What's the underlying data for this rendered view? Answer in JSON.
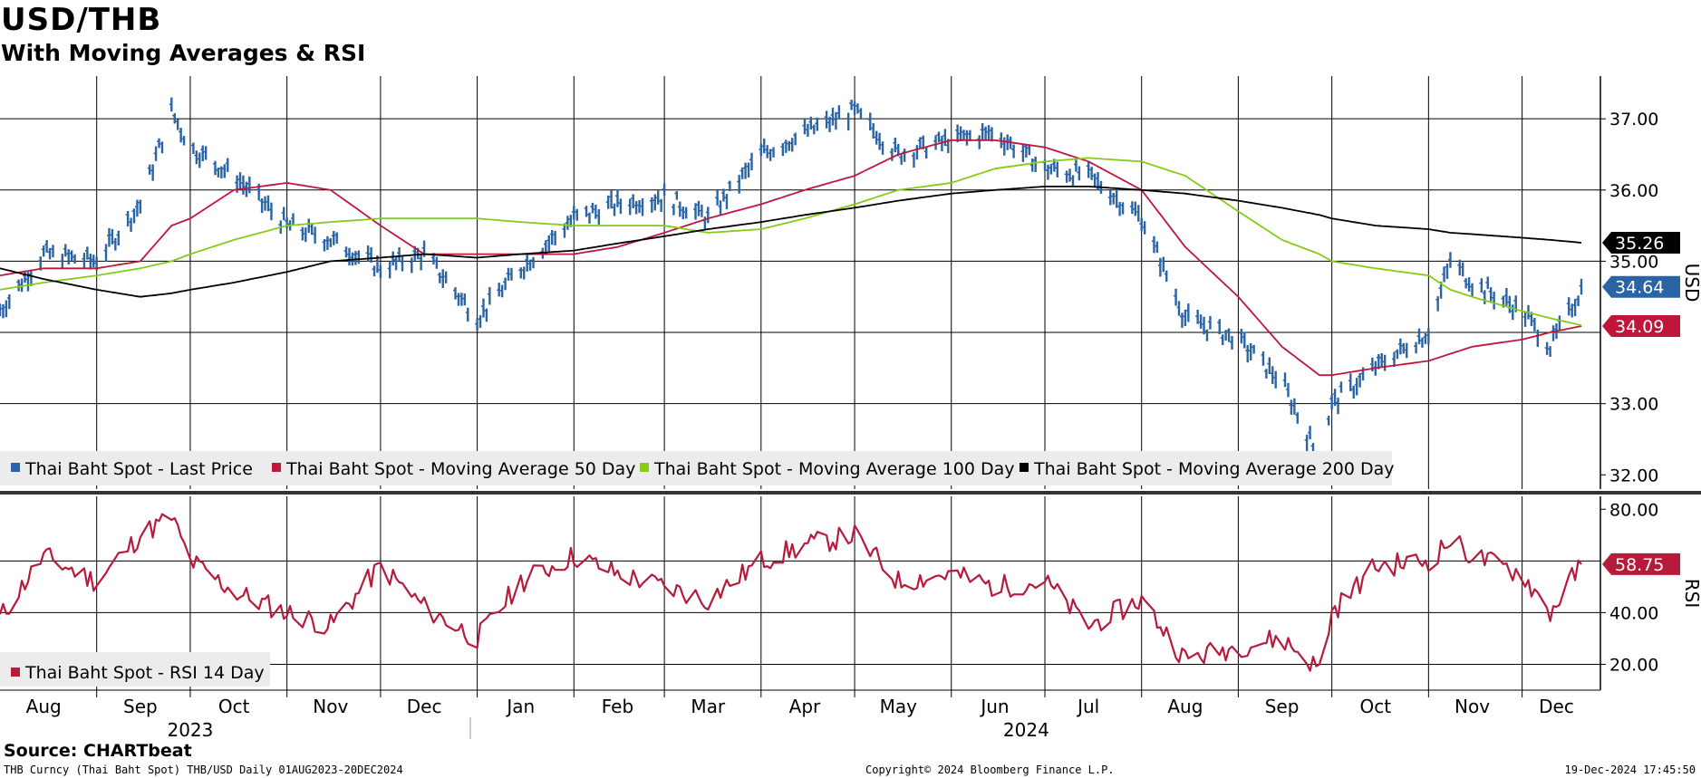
{
  "header": {
    "title": "USD/THB",
    "subtitle": "With Moving Averages & RSI"
  },
  "footer": {
    "source": "Source: CHARTbeat",
    "ticker": "THB Curncy (Thai Baht Spot) THB/USD  Daily 01AUG2023-20DEC2024",
    "copyright": "Copyright© 2024 Bloomberg Finance L.P.",
    "timestamp": "19-Dec-2024 17:45:50"
  },
  "colors": {
    "price": "#2b64a4",
    "ma50": "#c0163c",
    "ma100": "#84cc16",
    "ma200": "#000000",
    "rsi": "#b71b3b",
    "grid": "#000000"
  },
  "chart_data": [
    {
      "type": "line",
      "panel": "price",
      "ylabel": "USD",
      "ylim": [
        31.8,
        37.6
      ],
      "yticks": [
        "37.00",
        "36.00",
        "35.00",
        "33.00",
        "32.00"
      ],
      "ytick_values": [
        37,
        36,
        35,
        33,
        32
      ],
      "x_dates": [
        "2023-08-01",
        "2023-08-15",
        "2023-09-01",
        "2023-09-15",
        "2023-09-25",
        "2023-10-01",
        "2023-10-15",
        "2023-11-01",
        "2023-11-15",
        "2023-12-01",
        "2023-12-15",
        "2024-01-01",
        "2024-01-15",
        "2024-02-01",
        "2024-02-15",
        "2024-03-01",
        "2024-03-15",
        "2024-04-01",
        "2024-04-15",
        "2024-05-01",
        "2024-05-15",
        "2024-06-01",
        "2024-06-15",
        "2024-07-01",
        "2024-07-15",
        "2024-08-01",
        "2024-08-15",
        "2024-09-01",
        "2024-09-15",
        "2024-09-27",
        "2024-10-01",
        "2024-10-15",
        "2024-11-01",
        "2024-11-08",
        "2024-11-15",
        "2024-12-01",
        "2024-12-10",
        "2024-12-20"
      ],
      "series": [
        {
          "name": "Thai Baht Spot - Last Price",
          "values": [
            34.3,
            35.1,
            35.0,
            35.8,
            37.1,
            36.6,
            36.2,
            35.5,
            35.3,
            34.9,
            35.1,
            34.2,
            34.9,
            35.6,
            35.8,
            35.9,
            35.6,
            36.5,
            36.8,
            37.1,
            36.5,
            36.7,
            36.8,
            36.3,
            36.2,
            35.6,
            34.2,
            33.9,
            33.3,
            32.2,
            33.0,
            33.5,
            34.0,
            35.0,
            34.7,
            34.3,
            33.8,
            34.6
          ]
        },
        {
          "name": "Thai Baht Spot - Moving Average 50 Day",
          "values": [
            34.8,
            34.9,
            34.9,
            35.0,
            35.5,
            35.6,
            36.0,
            36.1,
            36.0,
            35.5,
            35.1,
            35.1,
            35.1,
            35.1,
            35.2,
            35.4,
            35.6,
            35.8,
            36.0,
            36.2,
            36.5,
            36.7,
            36.7,
            36.6,
            36.4,
            36.0,
            35.2,
            34.5,
            33.8,
            33.4,
            33.4,
            33.5,
            33.6,
            33.7,
            33.8,
            33.9,
            34.0,
            34.09
          ]
        },
        {
          "name": "Thai Baht Spot - Moving Average 100 Day",
          "values": [
            34.6,
            34.7,
            34.8,
            34.9,
            35.0,
            35.1,
            35.3,
            35.5,
            35.55,
            35.6,
            35.6,
            35.6,
            35.55,
            35.5,
            35.5,
            35.5,
            35.4,
            35.45,
            35.6,
            35.8,
            36.0,
            36.1,
            36.3,
            36.4,
            36.45,
            36.4,
            36.2,
            35.7,
            35.3,
            35.1,
            35.0,
            34.9,
            34.8,
            34.6,
            34.5,
            34.3,
            34.2,
            34.1
          ]
        },
        {
          "name": "Thai Baht Spot - Moving Average 200 Day",
          "values": [
            34.9,
            34.75,
            34.6,
            34.5,
            34.55,
            34.6,
            34.7,
            34.85,
            35.0,
            35.05,
            35.1,
            35.05,
            35.1,
            35.15,
            35.25,
            35.35,
            35.45,
            35.55,
            35.65,
            35.75,
            35.85,
            35.95,
            36.0,
            36.05,
            36.05,
            36.0,
            35.95,
            35.85,
            35.75,
            35.65,
            35.6,
            35.5,
            35.45,
            35.4,
            35.38,
            35.33,
            35.3,
            35.26
          ]
        }
      ],
      "last_values": [
        {
          "series": "Thai Baht Spot - Moving Average 200 Day",
          "value": 35.26,
          "label": "35.26"
        },
        {
          "series": "Thai Baht Spot - Last Price",
          "value": 34.64,
          "label": "34.64"
        },
        {
          "series": "Thai Baht Spot - Moving Average 50 Day",
          "value": 34.09,
          "label": "34.09"
        }
      ],
      "legend": [
        "Thai Baht Spot - Last Price",
        "Thai Baht Spot - Moving Average 50 Day",
        "Thai Baht Spot - Moving Average 100 Day",
        "Thai Baht Spot - Moving Average 200 Day"
      ],
      "legend_position": "bottom-left",
      "grid": true
    },
    {
      "type": "line",
      "panel": "rsi",
      "ylabel": "RSI",
      "ylim": [
        10,
        85
      ],
      "yticks": [
        "80.00",
        "40.00",
        "20.00"
      ],
      "ytick_values": [
        80,
        40,
        20
      ],
      "x_dates": [
        "2023-08-01",
        "2023-08-15",
        "2023-09-01",
        "2023-09-15",
        "2023-09-25",
        "2023-10-01",
        "2023-10-15",
        "2023-11-01",
        "2023-11-15",
        "2023-12-01",
        "2023-12-15",
        "2024-01-01",
        "2024-01-15",
        "2024-02-01",
        "2024-02-15",
        "2024-03-01",
        "2024-03-15",
        "2024-04-01",
        "2024-04-15",
        "2024-05-01",
        "2024-05-15",
        "2024-06-01",
        "2024-06-15",
        "2024-07-01",
        "2024-07-15",
        "2024-08-01",
        "2024-08-15",
        "2024-09-01",
        "2024-09-15",
        "2024-09-27",
        "2024-10-01",
        "2024-10-15",
        "2024-11-01",
        "2024-11-08",
        "2024-11-15",
        "2024-12-01",
        "2024-12-10",
        "2024-12-20"
      ],
      "series": [
        {
          "name": "Thai Baht Spot - RSI 14 Day",
          "values": [
            38,
            62,
            52,
            70,
            77,
            60,
            48,
            40,
            35,
            58,
            42,
            30,
            52,
            62,
            55,
            50,
            45,
            60,
            66,
            70,
            52,
            55,
            50,
            52,
            35,
            45,
            22,
            27,
            30,
            18,
            40,
            58,
            60,
            68,
            62,
            55,
            40,
            58.75
          ]
        }
      ],
      "last_values": [
        {
          "series": "Thai Baht Spot - RSI 14 Day",
          "value": 58.75,
          "label": "58.75"
        }
      ],
      "legend": [
        "Thai Baht Spot - RSI 14 Day"
      ],
      "legend_position": "bottom-left",
      "grid": true
    }
  ],
  "x_axis": {
    "months": [
      {
        "label": "Aug",
        "date": "2023-08-15"
      },
      {
        "label": "Sep",
        "date": "2023-09-15"
      },
      {
        "label": "Oct",
        "date": "2023-10-15"
      },
      {
        "label": "Nov",
        "date": "2023-11-15"
      },
      {
        "label": "Dec",
        "date": "2023-12-15"
      },
      {
        "label": "Jan",
        "date": "2024-01-15"
      },
      {
        "label": "Feb",
        "date": "2024-02-15"
      },
      {
        "label": "Mar",
        "date": "2024-03-15"
      },
      {
        "label": "Apr",
        "date": "2024-04-15"
      },
      {
        "label": "May",
        "date": "2024-05-15"
      },
      {
        "label": "Jun",
        "date": "2024-06-15"
      },
      {
        "label": "Jul",
        "date": "2024-07-15"
      },
      {
        "label": "Aug",
        "date": "2024-08-15"
      },
      {
        "label": "Sep",
        "date": "2024-09-15"
      },
      {
        "label": "Oct",
        "date": "2024-10-15"
      },
      {
        "label": "Nov",
        "date": "2024-11-15"
      },
      {
        "label": "Dec",
        "date": "2024-12-12"
      }
    ],
    "years": [
      {
        "label": "2023",
        "date": "2023-10-01"
      },
      {
        "label": "2024",
        "date": "2024-06-25"
      }
    ],
    "start": "2023-08-01",
    "end": "2024-12-20"
  }
}
